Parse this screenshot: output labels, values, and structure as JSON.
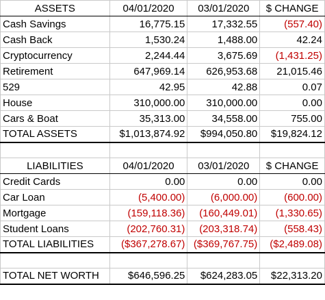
{
  "colors": {
    "negative": "#c00000",
    "text": "#000000",
    "grid": "#c9c9c9"
  },
  "assets": {
    "header": [
      "ASSETS",
      "04/01/2020",
      "03/01/2020",
      "$ CHANGE"
    ],
    "rows": [
      [
        "Cash Savings",
        "16,775.15",
        "17,332.55",
        "(557.40)"
      ],
      [
        "Cash Back",
        "1,530.24",
        "1,488.00",
        "42.24"
      ],
      [
        "Cryptocurrency",
        "2,244.44",
        "3,675.69",
        "(1,431.25)"
      ],
      [
        "Retirement",
        "647,969.14",
        "626,953.68",
        "21,015.46"
      ],
      [
        "529",
        "42.95",
        "42.88",
        "0.07"
      ],
      [
        "House",
        "310,000.00",
        "310,000.00",
        "0.00"
      ],
      [
        "Cars & Boat",
        "35,313.00",
        "34,558.00",
        "755.00"
      ]
    ],
    "total": [
      "TOTAL ASSETS",
      "$1,013,874.92",
      "$994,050.80",
      "$19,824.12"
    ]
  },
  "liabilities": {
    "header": [
      "LIABILITIES",
      "04/01/2020",
      "03/01/2020",
      "$ CHANGE"
    ],
    "rows": [
      [
        "Credit Cards",
        "0.00",
        "0.00",
        "0.00"
      ],
      [
        "Car Loan",
        "(5,400.00)",
        "(6,000.00)",
        "(600.00)"
      ],
      [
        "Mortgage",
        "(159,118.36)",
        "(160,449.01)",
        "(1,330.65)"
      ],
      [
        "Student Loans",
        "(202,760.31)",
        "(203,318.74)",
        "(558.43)"
      ]
    ],
    "total": [
      "TOTAL LIABILITIES",
      "($367,278.67)",
      "($369,767.75)",
      "($2,489.08)"
    ]
  },
  "net_worth": [
    "TOTAL NET WORTH",
    "$646,596.25",
    "$624,283.05",
    "$22,313.20"
  ]
}
